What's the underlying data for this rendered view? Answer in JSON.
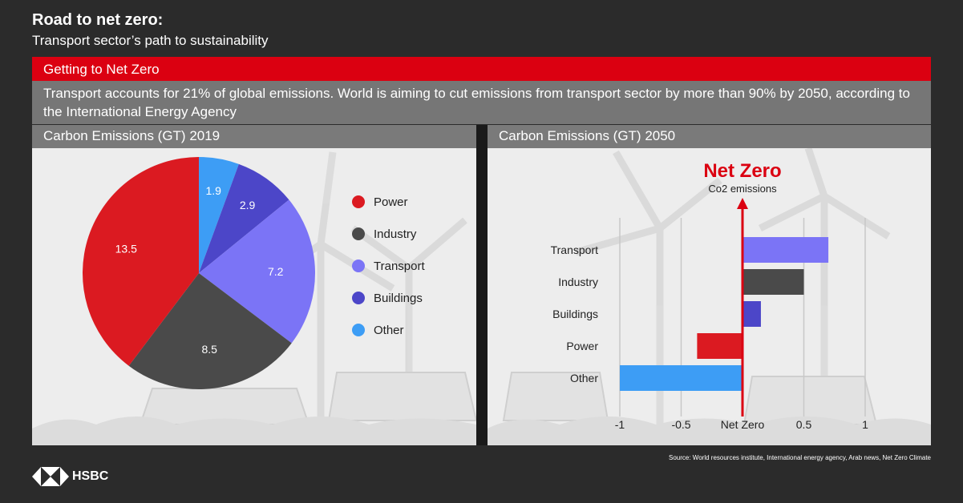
{
  "header": {
    "title": "Road to net zero:",
    "subtitle": "Transport sector’s path to sustainability"
  },
  "banner": {
    "label": "Getting to Net Zero",
    "description": "Transport accounts for 21% of global emissions. World is aiming to cut emissions from transport sector by more than 90% by 2050, according to the International Energy Agency"
  },
  "colors": {
    "power": "#db1a21",
    "industry": "#4a4a4a",
    "transport": "#7b74f6",
    "buildings": "#4c46c8",
    "other": "#3d9df5",
    "accent_red": "#db0011"
  },
  "chart_data": [
    {
      "type": "pie",
      "title": "Carbon Emissions (GT) 2019",
      "categories": [
        "Other",
        "Buildings",
        "Transport",
        "Industry",
        "Power"
      ],
      "values": [
        1.9,
        2.9,
        7.2,
        8.5,
        13.5
      ],
      "legend": [
        "Power",
        "Industry",
        "Transport",
        "Buildings",
        "Other"
      ],
      "legend_position": "right"
    },
    {
      "type": "bar",
      "orientation": "horizontal",
      "title": "Carbon Emissions (GT) 2050",
      "categories": [
        "Transport",
        "Industry",
        "Buildings",
        "Power",
        "Other"
      ],
      "values": [
        0.7,
        0.5,
        0.15,
        -0.37,
        -1.0
      ],
      "xlim": [
        -1,
        1
      ],
      "x_ticks": [
        "-1",
        "-0.5",
        "Net Zero",
        "0.5",
        "1"
      ],
      "x_tick_values": [
        -1,
        -0.5,
        0,
        0.5,
        1
      ],
      "annotation": {
        "label": "Net Zero",
        "sub_label": "Co2 emissions"
      },
      "grid": true
    }
  ],
  "footer": {
    "source": "Source: World resources institute, International energy agency,  Arab news, Net Zero Climate",
    "logo_text": "HSBC"
  }
}
